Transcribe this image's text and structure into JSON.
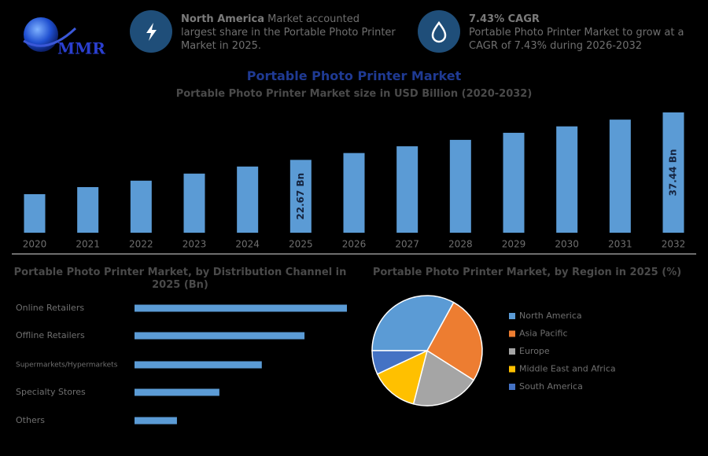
{
  "header": {
    "logo": "MMR",
    "highlights": [
      {
        "title": "North America",
        "text": "Market accounted largest share in the Portable Photo Printer Market in 2025."
      },
      {
        "title": "7.43% CAGR",
        "text": "Portable Photo Printer Market to grow at a CAGR of 7.43% during 2026-2032"
      }
    ]
  },
  "chart_data": [
    {
      "type": "bar",
      "title": "Portable Photo Printer Market",
      "subtitle": "Portable Photo Printer Market size in USD Billion (2020-2032)",
      "categories": [
        "2020",
        "2021",
        "2022",
        "2023",
        "2024",
        "2025",
        "2026",
        "2027",
        "2028",
        "2029",
        "2030",
        "2031",
        "2032"
      ],
      "values": [
        12.0,
        14.2,
        16.2,
        18.4,
        20.6,
        22.67,
        24.8,
        26.9,
        28.9,
        31.1,
        33.1,
        35.2,
        37.44
      ],
      "value_labels": [
        null,
        null,
        null,
        null,
        null,
        "22.67 Bn",
        null,
        null,
        null,
        null,
        null,
        null,
        "37.44 Bn"
      ],
      "color": "#5b9bd5"
    },
    {
      "type": "hbar",
      "title": "Portable Photo Printer Market, by Distribution Channel in 2025 (Bn)",
      "categories": [
        "Online Retailers",
        "Offline Retailers",
        "Supermarkets/Hypermarkets",
        "Specialty Stores",
        "Others"
      ],
      "values": [
        7.56,
        6.05,
        4.53,
        3.02,
        1.51
      ],
      "color": "#5b9bd5"
    },
    {
      "type": "pie",
      "title": "Portable Photo Printer Market, by Region in 2025 (%)",
      "categories": [
        "North America",
        "Asia Pacific",
        "Europe",
        "Middle East and Africa",
        "South America"
      ],
      "values": [
        33,
        26,
        20,
        14,
        7
      ],
      "colors": [
        "#5b9bd5",
        "#ed7d31",
        "#a5a5a5",
        "#ffc000",
        "#4472c4"
      ]
    }
  ]
}
